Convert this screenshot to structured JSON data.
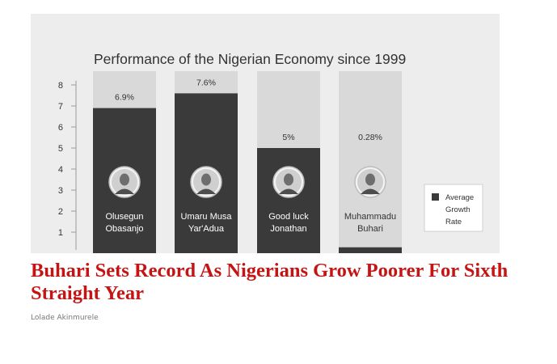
{
  "chart_data": {
    "type": "bar",
    "title": "Performance of the Nigerian Economy since 1999",
    "categories": [
      "Olusegun Obasanjo",
      "Umaru Musa Yar'Adua",
      "Goodluck Jonathan",
      "Muhammadu Buhari"
    ],
    "category_lines": [
      [
        "Olusegun",
        "Obasanjo"
      ],
      [
        "Umaru Musa",
        "Yar'Adua"
      ],
      [
        "Good luck",
        "Jonathan"
      ],
      [
        "Muhammadu",
        "Buhari"
      ]
    ],
    "values": [
      6.9,
      7.6,
      5.0,
      0.28
    ],
    "value_labels": [
      "6.9%",
      "7.6%",
      "5%",
      "0.28%"
    ],
    "yticks": [
      "1",
      "2",
      "3",
      "4",
      "5",
      "6",
      "7",
      "8"
    ],
    "ylim": [
      0,
      8
    ],
    "legend": {
      "label_lines": [
        "Average",
        "Growth",
        "Rate"
      ],
      "position": "right"
    },
    "colors": {
      "bar": "#3a3a3a",
      "track": "#d9d9d9",
      "panel": "#ededed",
      "text_dark": "#333333"
    },
    "icons": [
      "portrait-icon",
      "portrait-icon",
      "portrait-icon",
      "portrait-icon"
    ]
  },
  "article": {
    "headline": "Buhari Sets Record As Nigerians Grow Poorer For Sixth Straight Year",
    "author": "Lolade Akinmurele"
  }
}
